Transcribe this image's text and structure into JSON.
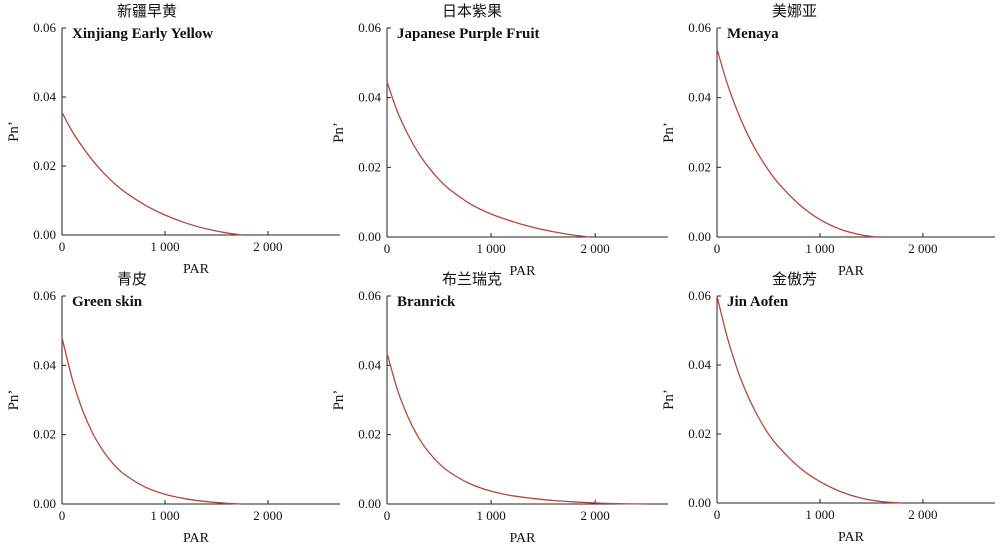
{
  "chart_data": [
    {
      "type": "line",
      "title": "新疆早黄",
      "subtitle": "Xinjiang Early Yellow",
      "xlabel": "PAR",
      "ylabel": "Pn’",
      "xlim": [
        0,
        2700
      ],
      "ylim": [
        0,
        0.06
      ],
      "xticks": [
        {
          "v": 0,
          "label": "0"
        },
        {
          "v": 1000,
          "label": "1 000"
        },
        {
          "v": 2000,
          "label": "2 000"
        }
      ],
      "yticks": [
        {
          "v": 0,
          "label": "0.00"
        },
        {
          "v": 0.02,
          "label": "0.02"
        },
        {
          "v": 0.04,
          "label": "0.04"
        },
        {
          "v": 0.06,
          "label": "0.06"
        }
      ],
      "series": [
        {
          "color": "#b5473a",
          "x": [
            0,
            100,
            200,
            300,
            400,
            500,
            600,
            800,
            1000,
            1200,
            1400,
            1600,
            1750
          ],
          "y": [
            0.0355,
            0.03,
            0.0255,
            0.0215,
            0.0181,
            0.0152,
            0.0127,
            0.0088,
            0.0058,
            0.0035,
            0.0018,
            0.0006,
            0.0
          ]
        }
      ]
    },
    {
      "type": "line",
      "title": "日本紫果",
      "subtitle": "Japanese Purple Fruit",
      "xlabel": "PAR",
      "ylabel": "Pn’",
      "xlim": [
        0,
        2700
      ],
      "ylim": [
        0,
        0.06
      ],
      "xticks": [
        {
          "v": 0,
          "label": "0"
        },
        {
          "v": 1000,
          "label": "1 000"
        },
        {
          "v": 2000,
          "label": "2 000"
        }
      ],
      "yticks": [
        {
          "v": 0,
          "label": "0.00"
        },
        {
          "v": 0.02,
          "label": "0.02"
        },
        {
          "v": 0.04,
          "label": "0.04"
        },
        {
          "v": 0.06,
          "label": "0.06"
        }
      ],
      "series": [
        {
          "color": "#b5473a",
          "x": [
            0,
            100,
            200,
            300,
            400,
            500,
            600,
            800,
            1000,
            1200,
            1400,
            1600,
            1800,
            1950
          ],
          "y": [
            0.0445,
            0.036,
            0.0295,
            0.0242,
            0.02,
            0.0165,
            0.0137,
            0.0095,
            0.0066,
            0.0045,
            0.0028,
            0.0015,
            0.0005,
            0.0
          ]
        }
      ]
    },
    {
      "type": "line",
      "title": "美娜亚",
      "subtitle": "Menaya",
      "xlabel": "PAR",
      "ylabel": "Pn’",
      "xlim": [
        0,
        2700
      ],
      "ylim": [
        0,
        0.06
      ],
      "xticks": [
        {
          "v": 0,
          "label": "0"
        },
        {
          "v": 1000,
          "label": "1 000"
        },
        {
          "v": 2000,
          "label": "2 000"
        }
      ],
      "yticks": [
        {
          "v": 0,
          "label": "0.00"
        },
        {
          "v": 0.02,
          "label": "0.02"
        },
        {
          "v": 0.04,
          "label": "0.04"
        },
        {
          "v": 0.06,
          "label": "0.06"
        }
      ],
      "series": [
        {
          "color": "#b5473a",
          "x": [
            0,
            100,
            200,
            300,
            400,
            500,
            600,
            800,
            1000,
            1200,
            1400,
            1550
          ],
          "y": [
            0.054,
            0.044,
            0.036,
            0.0293,
            0.0238,
            0.0192,
            0.0153,
            0.0093,
            0.005,
            0.0022,
            0.0006,
            0.0
          ]
        }
      ]
    },
    {
      "type": "line",
      "title": "青皮",
      "subtitle": "Green skin",
      "xlabel": "PAR",
      "ylabel": "Pn’",
      "xlim": [
        0,
        2700
      ],
      "ylim": [
        0,
        0.06
      ],
      "xticks": [
        {
          "v": 0,
          "label": "0"
        },
        {
          "v": 1000,
          "label": "1 000"
        },
        {
          "v": 2000,
          "label": "2 000"
        }
      ],
      "yticks": [
        {
          "v": 0,
          "label": "0.00"
        },
        {
          "v": 0.02,
          "label": "0.02"
        },
        {
          "v": 0.04,
          "label": "0.04"
        },
        {
          "v": 0.06,
          "label": "0.06"
        }
      ],
      "series": [
        {
          "color": "#b5473a",
          "x": [
            0,
            100,
            200,
            300,
            400,
            500,
            600,
            800,
            1000,
            1200,
            1400,
            1600,
            1750
          ],
          "y": [
            0.048,
            0.036,
            0.027,
            0.0203,
            0.0153,
            0.0115,
            0.0087,
            0.005,
            0.0028,
            0.0015,
            0.0007,
            0.0002,
            0.0
          ]
        }
      ]
    },
    {
      "type": "line",
      "title": "布兰瑞克",
      "subtitle": "Branrick",
      "xlabel": "PAR",
      "ylabel": "Pn’",
      "xlim": [
        0,
        2700
      ],
      "ylim": [
        0,
        0.06
      ],
      "xticks": [
        {
          "v": 0,
          "label": "0"
        },
        {
          "v": 1000,
          "label": "1 000"
        },
        {
          "v": 2000,
          "label": "2 000"
        }
      ],
      "yticks": [
        {
          "v": 0,
          "label": "0.00"
        },
        {
          "v": 0.02,
          "label": "0.02"
        },
        {
          "v": 0.04,
          "label": "0.04"
        },
        {
          "v": 0.06,
          "label": "0.06"
        }
      ],
      "series": [
        {
          "color": "#b5473a",
          "x": [
            0,
            100,
            200,
            300,
            400,
            500,
            600,
            800,
            1000,
            1200,
            1400,
            1600,
            1800,
            2000,
            2200,
            2500
          ],
          "y": [
            0.0435,
            0.033,
            0.0252,
            0.0193,
            0.015,
            0.0117,
            0.0092,
            0.0058,
            0.0037,
            0.0024,
            0.0016,
            0.001,
            0.0006,
            0.0003,
            0.0001,
            0.0
          ]
        }
      ]
    },
    {
      "type": "line",
      "title": "金傲芳",
      "subtitle": "Jin Aofen",
      "xlabel": "PAR",
      "ylabel": "Pn’",
      "xlim": [
        0,
        2700
      ],
      "ylim": [
        0,
        0.06
      ],
      "xticks": [
        {
          "v": 0,
          "label": "0"
        },
        {
          "v": 1000,
          "label": "1 000"
        },
        {
          "v": 2000,
          "label": "2 000"
        }
      ],
      "yticks": [
        {
          "v": 0,
          "label": "0.00"
        },
        {
          "v": 0.02,
          "label": "0.02"
        },
        {
          "v": 0.04,
          "label": "0.04"
        },
        {
          "v": 0.06,
          "label": "0.06"
        }
      ],
      "series": [
        {
          "color": "#b5473a",
          "x": [
            0,
            100,
            200,
            300,
            400,
            500,
            600,
            800,
            1000,
            1200,
            1400,
            1600,
            1800
          ],
          "y": [
            0.06,
            0.048,
            0.0385,
            0.031,
            0.025,
            0.02,
            0.0162,
            0.0103,
            0.0062,
            0.0033,
            0.0014,
            0.0004,
            0.0
          ]
        }
      ]
    }
  ]
}
